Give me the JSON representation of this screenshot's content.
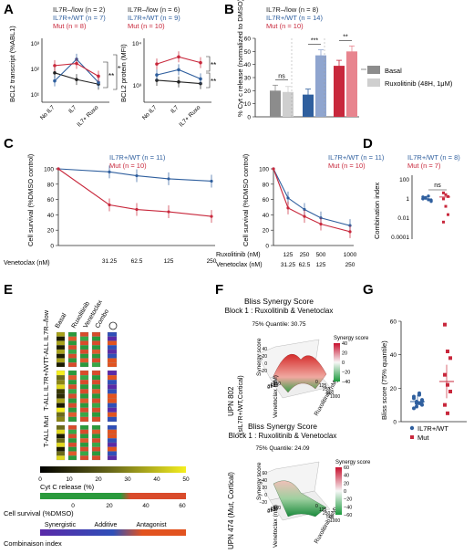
{
  "colors": {
    "blue": "#2f5f9e",
    "red": "#c8283c",
    "black": "#222222",
    "dgray": "#8c8c8c",
    "lgray": "#cfcfcf",
    "lblue": "#8fa5cf",
    "lred": "#e8848e"
  },
  "panels": {
    "A": {
      "label": "A",
      "legend": [
        "IL7R–/low (n = 2)",
        "IL7R+/WT (n = 7)",
        "Mut (n = 8)"
      ],
      "left": {
        "ylabel": "BCL2 transcript (%ABL1)",
        "yticks": [
          "10³",
          "10²",
          "10¹"
        ],
        "categories": [
          "No IL7",
          "IL7",
          "IL7+ Ruxo"
        ],
        "series": [
          {
            "color": "black",
            "values": [
              80,
              45,
              30
            ]
          },
          {
            "color": "blue",
            "values": [
              40,
              260,
              35
            ]
          },
          {
            "color": "red",
            "values": [
              150,
              180,
              60
            ]
          }
        ],
        "sig": [
          "**",
          "*"
        ]
      },
      "right": {
        "legend": [
          "IL7R–/low (n = 6)",
          "IL7R+/WT (n = 9)",
          "Mut (n = 10)"
        ],
        "ylabel": "BCL2 protein (MFI)",
        "yticks": [
          "10⁴",
          "10³"
        ],
        "categories": [
          "No IL7",
          "IL7",
          "IL7+ Ruxo"
        ],
        "series": [
          {
            "color": "black",
            "values": [
              1400,
              1300,
              1200
            ]
          },
          {
            "color": "blue",
            "values": [
              1800,
              2300,
              1500
            ]
          },
          {
            "color": "red",
            "values": [
              3000,
              4200,
              3200
            ]
          }
        ],
        "sig": [
          "**",
          "**"
        ]
      }
    },
    "B": {
      "label": "B",
      "legend": [
        "IL7R–/low (n = 8)",
        "IL7R+/WT (n = 14)",
        "Mut (n = 10)"
      ],
      "ylabel": "% Cyt c release (normalized to DMSO)",
      "yticks": [
        "0",
        "10",
        "20",
        "30",
        "40",
        "50",
        "60"
      ],
      "ylim": [
        0,
        60
      ],
      "groups": [
        {
          "name": "IL7R–/low",
          "basal": 20,
          "ruxo": 19
        },
        {
          "name": "IL7R+/WT",
          "basal": 17,
          "ruxo": 47
        },
        {
          "name": "Mut",
          "basal": 39,
          "ruxo": 50
        }
      ],
      "sig": [
        "ns",
        "***",
        "**"
      ],
      "key": [
        "Basal",
        "Ruxolitinib (48H, 1μM)"
      ]
    },
    "C": {
      "label": "C",
      "left": {
        "legend": [
          "IL7R+/WT (n = 11)",
          "Mut (n = 10)"
        ],
        "ylabel": "Cell survival (%DMSO control)",
        "yticks": [
          "0",
          "20",
          "40",
          "60",
          "80",
          "100"
        ],
        "xlabel_row": "Venetoclax (nM)",
        "xticks": [
          "31.25",
          "62.5",
          "125",
          "250"
        ],
        "series": [
          {
            "color": "blue",
            "x": [
              0,
              31.25,
              62.5,
              125,
              250
            ],
            "y": [
              100,
              96,
              91,
              87,
              84
            ]
          },
          {
            "color": "red",
            "x": [
              0,
              31.25,
              62.5,
              125,
              250
            ],
            "y": [
              100,
              53,
              47,
              44,
              38
            ]
          }
        ]
      },
      "right": {
        "legend": [
          "IL7R+/WT (n = 11)",
          "Mut (n = 10)"
        ],
        "ylabel": "Cell survival (%DMSO control)",
        "yticks": [
          "0",
          "20",
          "40",
          "60",
          "80",
          "100"
        ],
        "row1_label": "Ruxolitinib (nM)",
        "row1": [
          "125",
          "250",
          "500",
          "1000"
        ],
        "row2_label": "Venetoclax (nM)",
        "row2": [
          "31.25",
          "62.5",
          "125",
          "250"
        ],
        "series": [
          {
            "color": "blue",
            "y": [
              100,
              62,
              47,
              36,
              26
            ]
          },
          {
            "color": "red",
            "y": [
              100,
              49,
              38,
              28,
              18
            ]
          }
        ]
      }
    },
    "D": {
      "label": "D",
      "legend": [
        "IL7R+/WT (n = 8)",
        "Mut (n = 7)"
      ],
      "ylabel": "Combination index",
      "yticks": [
        "100",
        "1",
        "0.01",
        "0.0001"
      ],
      "sig": "ns",
      "wt": [
        0.9,
        0.7,
        0.5,
        0.35,
        0.6,
        0.8,
        1.1,
        0.45
      ],
      "mut": [
        2.2,
        1.5,
        1.0,
        0.6,
        0.12,
        0.02,
        0.004
      ]
    },
    "E": {
      "label": "E",
      "cols": [
        "Basal",
        "Ruxolitinib",
        "Venetoclax",
        "Combo"
      ],
      "rows": [
        "T-ALL IL7R–/low",
        "T-ALL IL7R+/WT",
        "T-ALL Mut"
      ],
      "cyt_label": "Cyt C release (%)",
      "cyt_ticks": [
        "0",
        "10",
        "20",
        "30",
        "40",
        "50"
      ],
      "surv_label": "Cell survival (%DMSO)",
      "surv_ticks": [
        "0",
        "20",
        "40",
        "60"
      ],
      "ci_key": [
        "Synergistic",
        "Additive",
        "Antagonist"
      ],
      "ci_label": "Combinaison index"
    },
    "F": {
      "label": "F",
      "top": {
        "title": "Bliss Synergy Score",
        "subtitle": "Block 1 : Ruxolitinib & Venetoclax",
        "quantile": "75% Quantile: 30.75",
        "sample": "UPN 802",
        "sample2": "(sIL7R+/WT,Cortical)",
        "zlabel": "Synergy score",
        "cb_title": "Synergy score",
        "cb_ticks": [
          "40",
          "20",
          "0",
          "−20",
          "−40"
        ],
        "xlabel": "Ruxolitinib (nM)",
        "ylabel": "Venetoclax (nM)",
        "xt": [
          "0",
          "125",
          "250",
          "500",
          "1000"
        ],
        "yt": [
          "0",
          "31",
          "63",
          "125",
          "250"
        ],
        "zt": [
          "40",
          "20",
          "0",
          "−20"
        ]
      },
      "bottom": {
        "title": "Bliss Synergy Score",
        "subtitle": "Block 1 : Ruxolitinib & Venetoclax",
        "quantile": "75% Quantile: 24.09",
        "sample": "UPN 474 (Mut, Cortical)",
        "zlabel": "Synergy score",
        "cb_title": "Synergy score",
        "cb_ticks": [
          "60",
          "40",
          "20",
          "0",
          "−20",
          "−40",
          "−60"
        ],
        "xlabel": "Ruxolitinib (nM)",
        "ylabel": "Venetoclax (nM)",
        "xt": [
          "0",
          "125",
          "250",
          "500",
          "1000"
        ],
        "yt": [
          "0",
          "31",
          "63",
          "125",
          "250"
        ],
        "zt": [
          "60",
          "40",
          "20",
          "0",
          "−20"
        ]
      }
    },
    "G": {
      "label": "G",
      "ylabel": "Bliss score (75% quantile)",
      "yticks": [
        "0",
        "20",
        "40",
        "60"
      ],
      "ylim": [
        0,
        60
      ],
      "legend": [
        "IL7R+/WT",
        "Mut"
      ],
      "wt": [
        14,
        12,
        11,
        10,
        15,
        9,
        17,
        13,
        8,
        11,
        16,
        12
      ],
      "mut": [
        58,
        42,
        38,
        28,
        22,
        18,
        10,
        5
      ]
    }
  }
}
